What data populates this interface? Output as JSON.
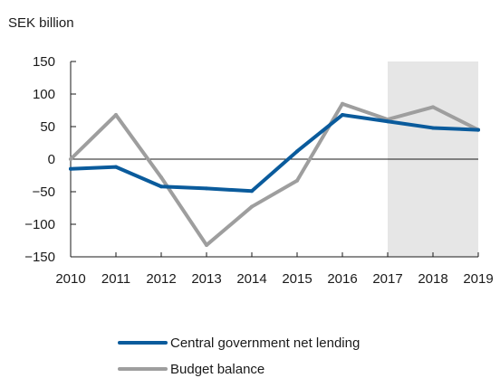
{
  "chart_data": {
    "type": "line",
    "unit_label": "SEK billion",
    "x": [
      "2010",
      "2011",
      "2012",
      "2013",
      "2014",
      "2015",
      "2016",
      "2017",
      "2018",
      "2019"
    ],
    "ylim": [
      -150,
      150
    ],
    "yticks": [
      150,
      100,
      50,
      0,
      -50,
      -100,
      -150
    ],
    "grid": false,
    "shaded_x_range": [
      "2017",
      "2019"
    ],
    "shade_color": "#e6e6e6",
    "legend_position": "bottom",
    "series": [
      {
        "name": "Central government net lending",
        "color": "#0a5b9c",
        "values": [
          -15,
          -12,
          -42,
          -45,
          -49,
          12,
          68,
          58,
          48,
          45
        ]
      },
      {
        "name": "Budget balance",
        "color": "#9e9e9e",
        "values": [
          0,
          68,
          -28,
          -132,
          -73,
          -33,
          85,
          61,
          80,
          45
        ]
      }
    ]
  }
}
